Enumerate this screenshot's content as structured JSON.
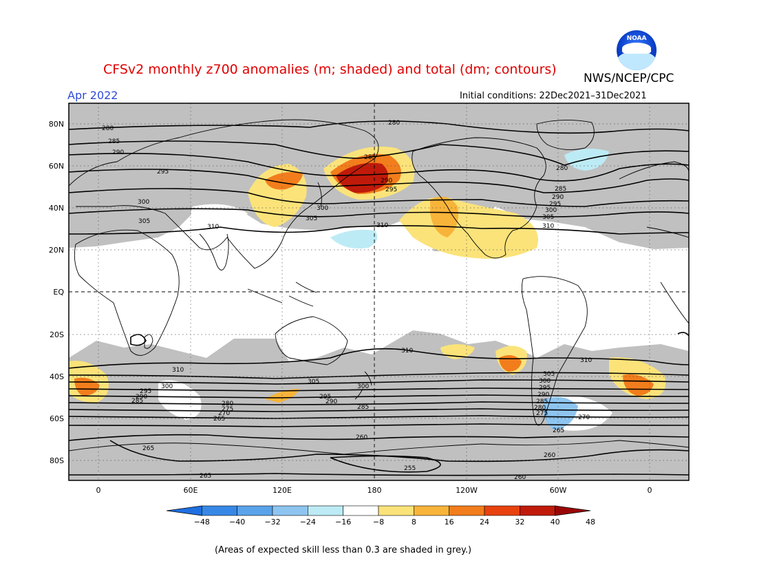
{
  "header": {
    "title": "CFSv2 monthly z700 anomalies (m; shaded) and total (dm; contours)",
    "org": "NWS/NCEP/CPC",
    "month": "Apr 2022",
    "initial_conditions": "Initial conditions: 22Dec2021–31Dec2021"
  },
  "map": {
    "lat_labels": [
      "80N",
      "60N",
      "40N",
      "20N",
      "EQ",
      "20S",
      "40S",
      "60S",
      "80S"
    ],
    "lon_labels": [
      "0",
      "60E",
      "120E",
      "180",
      "120W",
      "60W",
      "0"
    ],
    "contour_labels": [
      "280",
      "285",
      "290",
      "295",
      "300",
      "305",
      "310",
      "305",
      "300",
      "295",
      "290",
      "285",
      "280",
      "275",
      "270",
      "265",
      "260",
      "255"
    ],
    "grey_note": "grey shading = expected skill < 0.3",
    "colors": {
      "ocean_land_bg": "#ffffff",
      "low_skill": "#c0c0c0",
      "coast": "#000000"
    }
  },
  "colorbar": {
    "tick_labels": [
      "-48",
      "-40",
      "-32",
      "-24",
      "-16",
      "-8",
      "8",
      "16",
      "24",
      "32",
      "40",
      "48"
    ],
    "colors": [
      "#1f6fe0",
      "#3788e6",
      "#5aa2ea",
      "#8ec5f0",
      "#bdebf5",
      "#ffffff",
      "#fbe37a",
      "#f8b43a",
      "#f27d1c",
      "#e8420e",
      "#c01a0a",
      "#9a0606"
    ]
  },
  "footnote": "(Areas of expected skill less than 0.3 are shaded in grey.)",
  "logo": {
    "text": "NOAA",
    "icon": "noaa-logo-icon"
  }
}
